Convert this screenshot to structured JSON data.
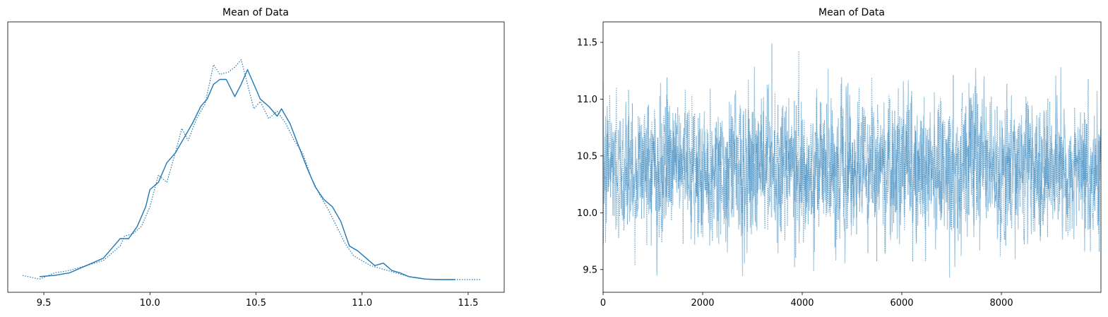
{
  "chart_data": [
    {
      "type": "line",
      "title": "Mean of Data",
      "xlabel": "",
      "ylabel": "",
      "xlim": [
        9.33,
        11.67
      ],
      "xticks": [
        9.5,
        10.0,
        10.5,
        11.0,
        11.5
      ],
      "xtick_labels": [
        "9.5",
        "10.0",
        "10.5",
        "11.0",
        "11.5"
      ],
      "yticks": [],
      "grid": false,
      "series": [
        {
          "style": "solid",
          "color": "#1f77b4",
          "x": [
            9.48,
            9.55,
            9.62,
            9.7,
            9.78,
            9.82,
            9.86,
            9.9,
            9.94,
            9.98,
            10.0,
            10.04,
            10.08,
            10.12,
            10.16,
            10.2,
            10.24,
            10.27,
            10.3,
            10.33,
            10.36,
            10.4,
            10.43,
            10.46,
            10.48,
            10.52,
            10.56,
            10.6,
            10.62,
            10.66,
            10.7,
            10.74,
            10.78,
            10.82,
            10.86,
            10.9,
            10.94,
            10.98,
            11.02,
            11.06,
            11.1,
            11.14,
            11.18,
            11.22,
            11.26,
            11.3,
            11.35,
            11.44
          ],
          "y": [
            0.015,
            0.02,
            0.03,
            0.06,
            0.09,
            0.13,
            0.17,
            0.17,
            0.22,
            0.3,
            0.37,
            0.4,
            0.48,
            0.52,
            0.58,
            0.64,
            0.71,
            0.74,
            0.8,
            0.82,
            0.82,
            0.75,
            0.8,
            0.86,
            0.82,
            0.74,
            0.71,
            0.67,
            0.7,
            0.64,
            0.55,
            0.46,
            0.38,
            0.33,
            0.3,
            0.24,
            0.14,
            0.12,
            0.09,
            0.06,
            0.07,
            0.04,
            0.03,
            0.015,
            0.01,
            0.005,
            0.003,
            0.003
          ]
        },
        {
          "style": "dotted",
          "color": "#1f77b4",
          "x": [
            9.4,
            9.48,
            9.55,
            9.62,
            9.7,
            9.78,
            9.82,
            9.86,
            9.88,
            9.92,
            9.96,
            10.0,
            10.04,
            10.08,
            10.12,
            10.15,
            10.18,
            10.22,
            10.26,
            10.3,
            10.33,
            10.37,
            10.4,
            10.43,
            10.46,
            10.49,
            10.52,
            10.56,
            10.6,
            10.64,
            10.68,
            10.72,
            10.76,
            10.8,
            10.84,
            10.88,
            10.92,
            10.96,
            11.0,
            11.04,
            11.08,
            11.12,
            11.16,
            11.2,
            11.25,
            11.3,
            11.4,
            11.56
          ],
          "y": [
            0.02,
            0.005,
            0.03,
            0.04,
            0.06,
            0.08,
            0.11,
            0.14,
            0.18,
            0.19,
            0.22,
            0.3,
            0.43,
            0.4,
            0.52,
            0.62,
            0.57,
            0.66,
            0.72,
            0.88,
            0.84,
            0.85,
            0.87,
            0.9,
            0.8,
            0.7,
            0.73,
            0.66,
            0.69,
            0.64,
            0.57,
            0.52,
            0.42,
            0.35,
            0.29,
            0.22,
            0.15,
            0.1,
            0.08,
            0.06,
            0.05,
            0.04,
            0.03,
            0.02,
            0.01,
            0.005,
            0.003,
            0.003
          ]
        }
      ]
    },
    {
      "type": "line",
      "title": "Mean of Data",
      "xlabel": "",
      "ylabel": "",
      "xlim": [
        0,
        9999
      ],
      "ylim": [
        9.3,
        11.68
      ],
      "xticks": [
        0,
        2000,
        4000,
        6000,
        8000
      ],
      "xtick_labels": [
        "0",
        "2000",
        "4000",
        "6000",
        "8000"
      ],
      "yticks": [
        9.5,
        10.0,
        10.5,
        11.0,
        11.5
      ],
      "ytick_labels": [
        "9.5",
        "10.0",
        "10.5",
        "11.0",
        "11.5"
      ],
      "grid": false,
      "trace_summary": {
        "n_draws": 10000,
        "center": 10.4,
        "spread_sd": 0.29,
        "max": 11.56,
        "min": 9.42
      },
      "series": [
        {
          "style": "solid",
          "color": "#1f77b4",
          "alpha": 0.4
        },
        {
          "style": "dotted",
          "color": "#1f77b4",
          "alpha": 0.6
        }
      ]
    }
  ]
}
